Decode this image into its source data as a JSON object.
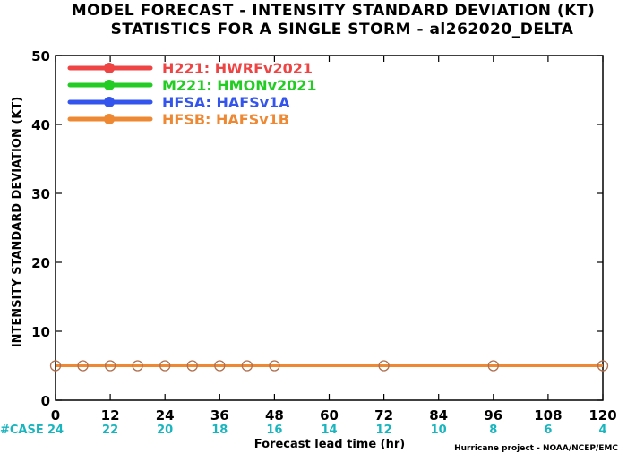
{
  "title_line1": "MODEL FORECAST - INTENSITY STANDARD DEVIATION (KT)",
  "title_line2": "STATISTICS FOR A SINGLE STORM - al262020_DELTA",
  "credit": "Hurricane project - NOAA/NCEP/EMC",
  "case_label": "#CASE",
  "colors": {
    "cases": "#18b5bf",
    "H221": "#ee4444",
    "M221": "#22cc22",
    "HFSA": "#3355ee",
    "HFSB": "#ee8833"
  },
  "chart_data": {
    "type": "line",
    "xlabel": "Forecast lead time (hr)",
    "ylabel": "INTENSITY STANDARD DEVIATION (KT)",
    "xlim": [
      0,
      120
    ],
    "ylim": [
      0,
      50
    ],
    "xticks": [
      0,
      12,
      24,
      36,
      48,
      60,
      72,
      84,
      96,
      108,
      120
    ],
    "yticks": [
      0,
      10,
      20,
      30,
      40,
      50
    ],
    "legend_position": "top-left",
    "cases": [
      {
        "x": 0,
        "n": 24
      },
      {
        "x": 12,
        "n": 22
      },
      {
        "x": 24,
        "n": 20
      },
      {
        "x": 36,
        "n": 18
      },
      {
        "x": 48,
        "n": 16
      },
      {
        "x": 60,
        "n": 14
      },
      {
        "x": 72,
        "n": 12
      },
      {
        "x": 84,
        "n": 10
      },
      {
        "x": 96,
        "n": 8
      },
      {
        "x": 108,
        "n": 6
      },
      {
        "x": 120,
        "n": 4
      }
    ],
    "series": [
      {
        "name": "H221: HWRFv2021",
        "color": "#ee4444",
        "x": [],
        "y": []
      },
      {
        "name": "M221: HMONv2021",
        "color": "#22cc22",
        "x": [],
        "y": []
      },
      {
        "name": "HFSA: HAFSv1A",
        "color": "#3355ee",
        "x": [],
        "y": []
      },
      {
        "name": "HFSB: HAFSv1B",
        "color": "#ee8833",
        "x": [
          0,
          6,
          12,
          18,
          24,
          30,
          36,
          42,
          48,
          72,
          96,
          120
        ],
        "y": [
          5,
          5,
          5,
          5,
          5,
          5,
          5,
          5,
          5,
          5,
          5,
          5
        ]
      }
    ]
  }
}
